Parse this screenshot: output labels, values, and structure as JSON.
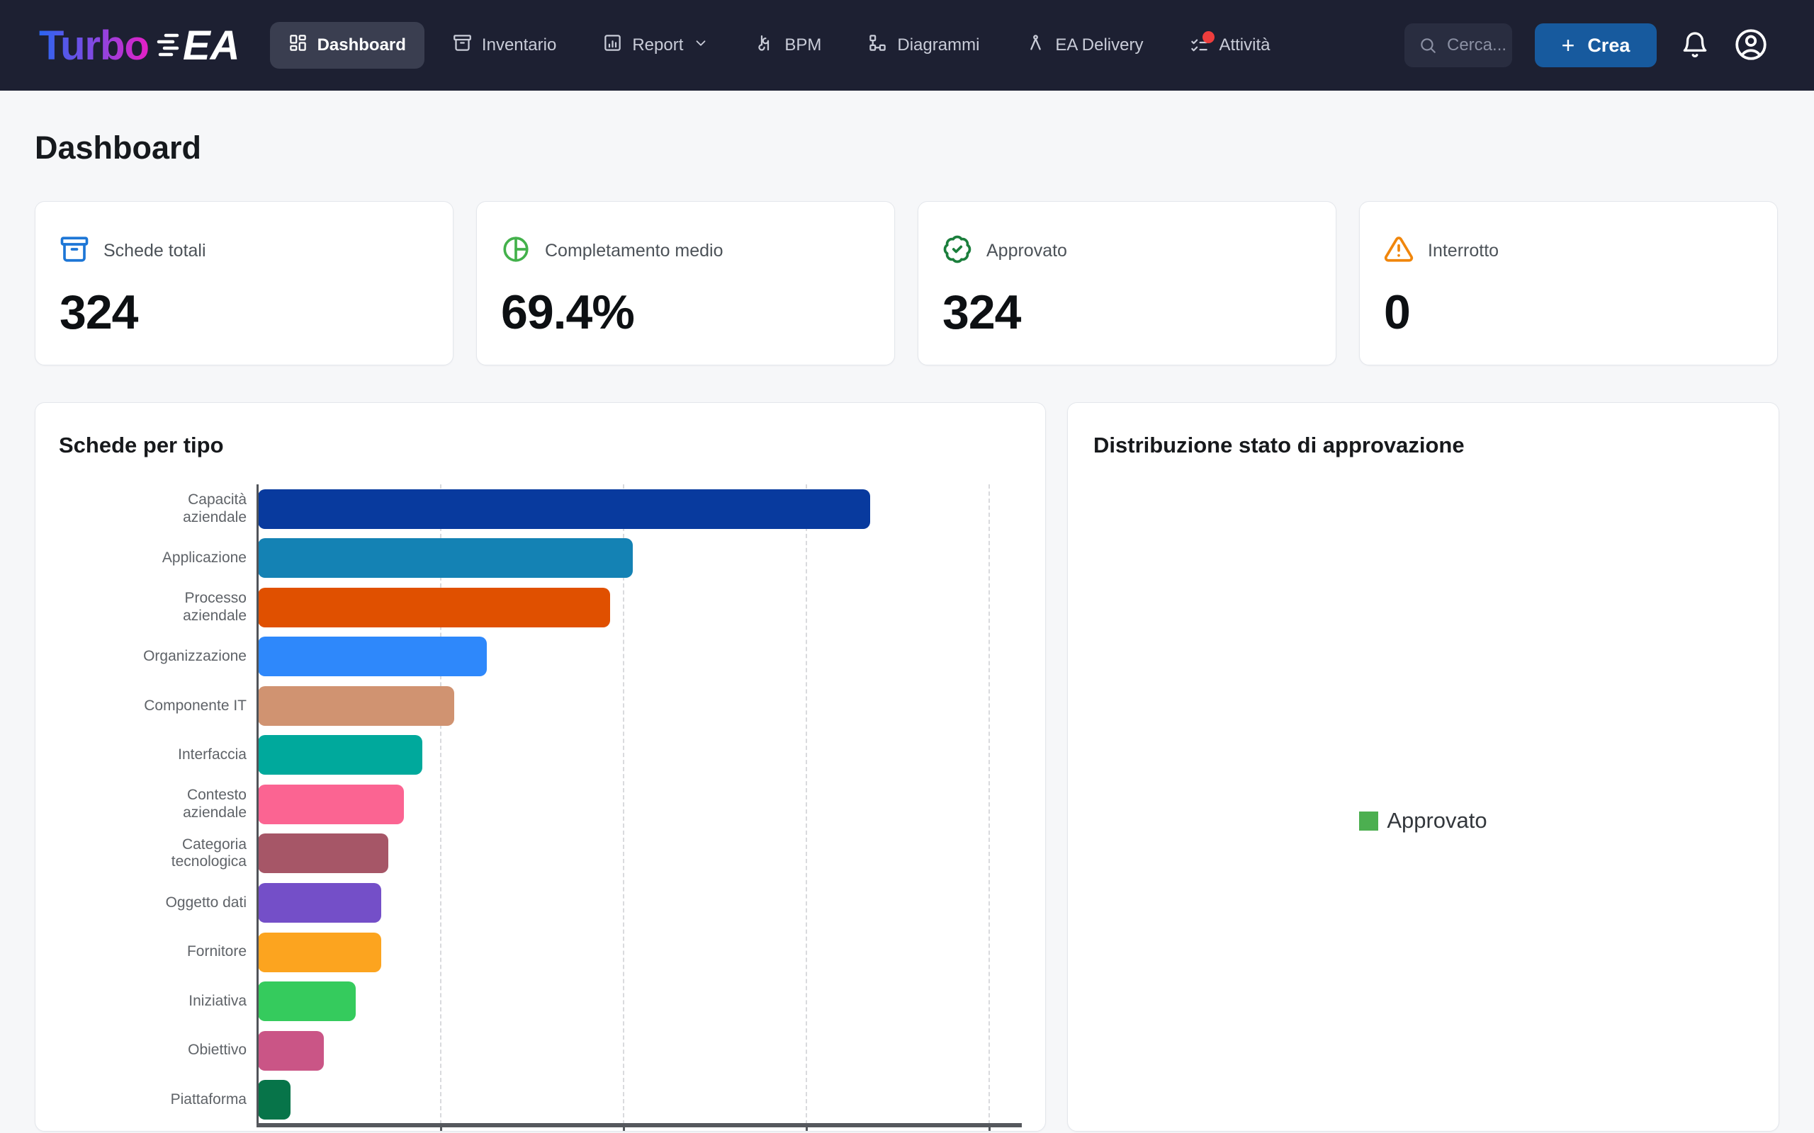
{
  "navbar": {
    "logo": {
      "turbo": "Turbo",
      "ea": "EA"
    },
    "items": [
      {
        "label": "Dashboard"
      },
      {
        "label": "Inventario"
      },
      {
        "label": "Report"
      },
      {
        "label": "BPM"
      },
      {
        "label": "Diagrammi"
      },
      {
        "label": "EA Delivery"
      },
      {
        "label": "Attività"
      }
    ],
    "search": {
      "placeholder": "Cerca..."
    },
    "create_button": "Crea"
  },
  "page": {
    "title": "Dashboard"
  },
  "stats": [
    {
      "label": "Schede totali",
      "value": "324",
      "icon": "archive-icon",
      "color": "#1d76d6"
    },
    {
      "label": "Completamento medio",
      "value": "69.4%",
      "icon": "pie-icon",
      "color": "#43b14b"
    },
    {
      "label": "Approvato",
      "value": "324",
      "icon": "badge-check-icon",
      "color": "#1b7e3c"
    },
    {
      "label": "Interrotto",
      "value": "0",
      "icon": "alert-triangle-icon",
      "color": "#f0860c"
    }
  ],
  "chart_data": [
    {
      "type": "bar",
      "orientation": "horizontal",
      "title": "Schede per tipo",
      "categories": [
        "Capacità\naziendale",
        "Applicazione",
        "Processo\naziendale",
        "Organizzazione",
        "Componente IT",
        "Interfaccia",
        "Contesto\naziendale",
        "Categoria\ntecnologica",
        "Oggetto dati",
        "Fornitore",
        "Iniziativa",
        "Obiettivo",
        "Piattaforma"
      ],
      "values": [
        67,
        41,
        38.5,
        25,
        21.5,
        18,
        16,
        14.3,
        13.5,
        13.5,
        10.7,
        7.2,
        3.6
      ],
      "colors": [
        "#083a9e",
        "#1482b4",
        "#e05000",
        "#2e88fb",
        "#d09371",
        "#00a99c",
        "#fb6492",
        "#a65667",
        "#744fc8",
        "#fca41f",
        "#35cb5d",
        "#ca5586",
        "#077449"
      ],
      "xlim": [
        0,
        83
      ],
      "gridline_step": 20,
      "grid": "dashed-vertical",
      "x_tick_labels_visible": false,
      "xlabel": "",
      "ylabel": ""
    },
    {
      "type": "pie",
      "title": "Distribuzione stato di approvazione",
      "legend": [
        {
          "label": "Approvato",
          "color": "#4caf50"
        }
      ],
      "legend_position": "center",
      "slices_visible": false
    }
  ]
}
